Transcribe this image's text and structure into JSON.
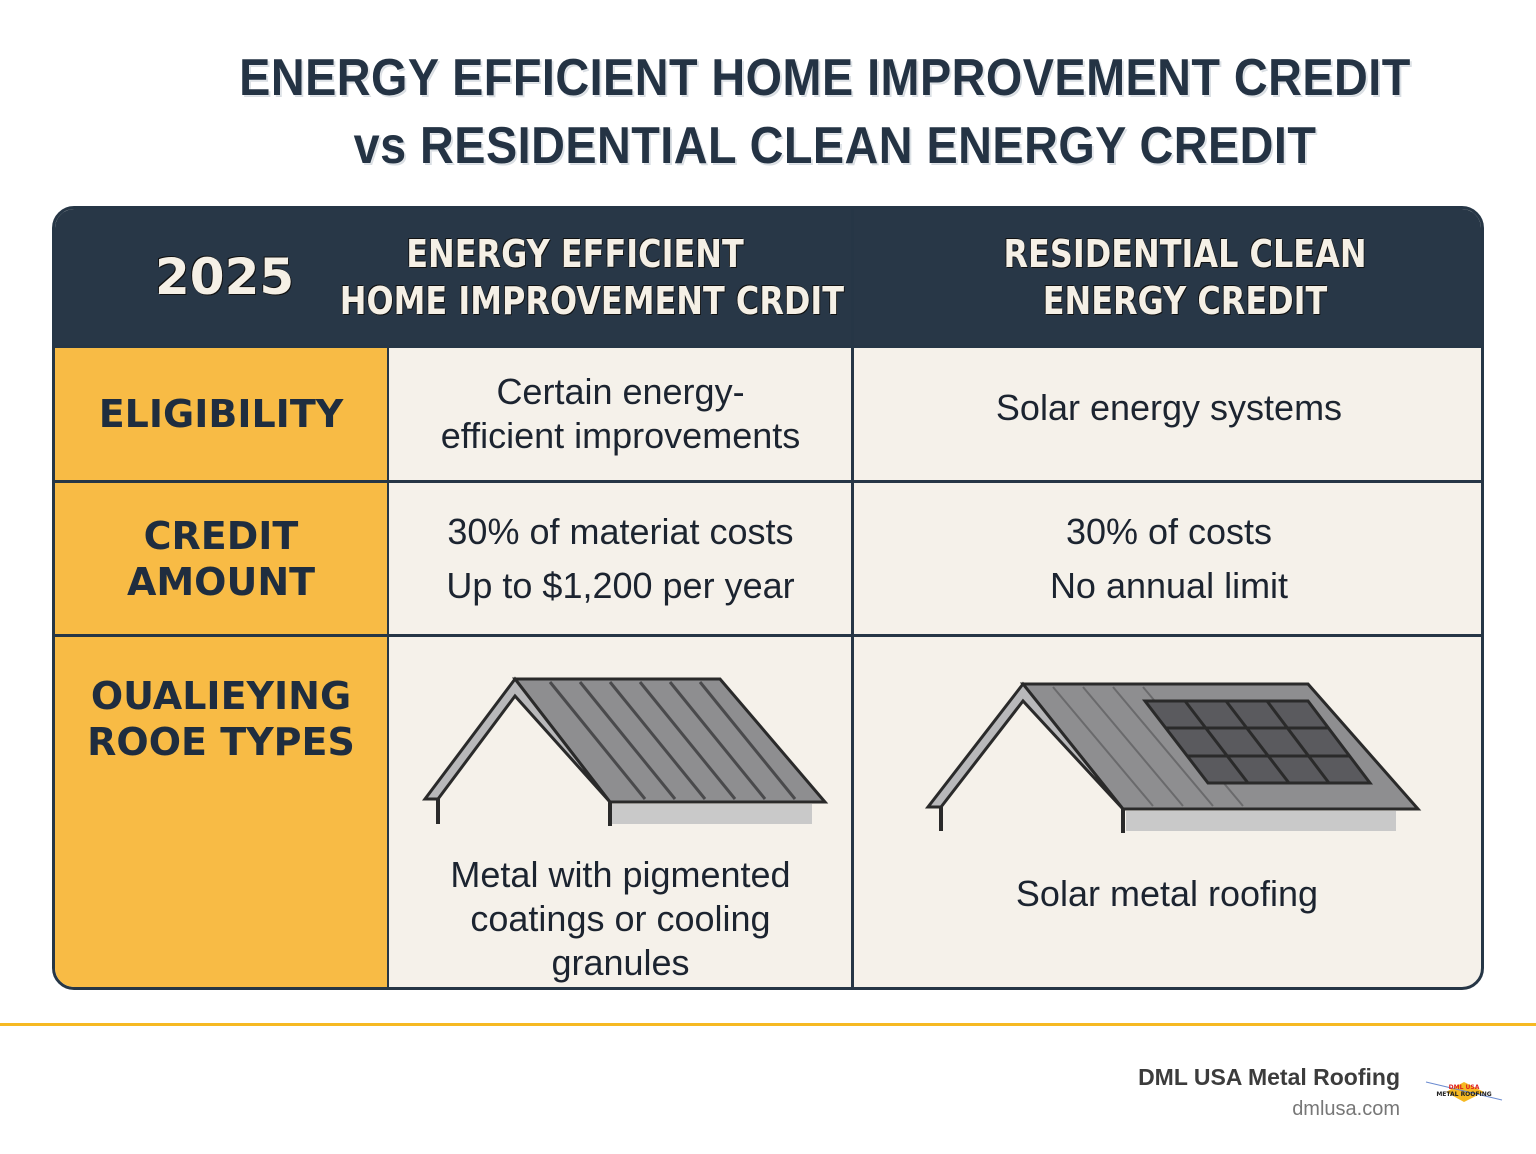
{
  "title": {
    "line1": "ENERGY EFFICIENT HOME IMPROVEMENT CREDIT",
    "line2": "vs RESIDENTIAL CLEAN ENERGY CREDIT"
  },
  "table": {
    "year": "2025",
    "col1_header": [
      "ENERGY EFFICIENT",
      "HOME IMPROVEMENT CRDIT"
    ],
    "col2_header": [
      "RESIDENTIAL CLEAN",
      "ENERGY CREDIT"
    ],
    "rows": [
      {
        "label": [
          "ELIGIBILITY"
        ],
        "col1": [
          "Certain energy-",
          "efficient improvements"
        ],
        "col2": [
          "Solar energy systems"
        ]
      },
      {
        "label": [
          "CREDIT",
          "AMOUNT"
        ],
        "col1": [
          "30% of materiat costs",
          "Up to $1,200 per year"
        ],
        "col2": [
          "30% of costs",
          "No annual limit"
        ]
      },
      {
        "label": [
          "OUALIEYING",
          "ROOE TYPES"
        ],
        "col1": [
          "Metal with pigmented",
          "coatings or cooling",
          "granules"
        ],
        "col2": [
          "Solar metal roofing"
        ],
        "col1_icon": "metal-roof-icon",
        "col2_icon": "solar-roof-icon"
      }
    ]
  },
  "footer": {
    "brand": "DML USA Metal Roofing",
    "url": "dmlusa.com",
    "logo_text": [
      "DML USA",
      "METAL ROOFING"
    ]
  },
  "colors": {
    "header": "#283747",
    "label": "#f8bb45",
    "cell": "#f5f1ea",
    "accent_line": "#f6b922"
  }
}
